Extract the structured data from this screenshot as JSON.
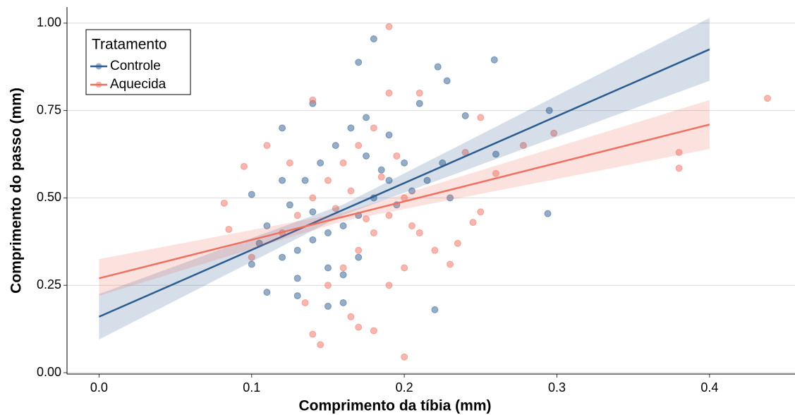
{
  "chart_data": {
    "type": "scatter",
    "x_label": "Comprimento da tíbia (mm)",
    "y_label": "Comprimento do passo (mm)",
    "legend_title": "Tratamento",
    "legend": "top-left",
    "grid": true,
    "xlim": [
      -0.021,
      0.456
    ],
    "ylim": [
      -0.004,
      1.046
    ],
    "xticks": [
      {
        "value": 0,
        "label": "0.0"
      },
      {
        "value": 0.1,
        "label": "0.1"
      },
      {
        "value": 0.2,
        "label": "0.2"
      },
      {
        "value": 0.3,
        "label": "0.3"
      },
      {
        "value": 0.4,
        "label": "0.4"
      }
    ],
    "yticks": [
      {
        "value": 0,
        "label": "0.00"
      },
      {
        "value": 0.25,
        "label": "0.25"
      },
      {
        "value": 0.5,
        "label": "0.50"
      },
      {
        "value": 0.75,
        "label": "0.75"
      },
      {
        "value": 1,
        "label": "1.00"
      }
    ],
    "series": [
      {
        "name": "Controle",
        "color": "#2b5c8f",
        "x": [
          0.259,
          0.295,
          0.294,
          0.26,
          0.22,
          0.18,
          0.17,
          0.222,
          0.228,
          0.1,
          0.12,
          0.14,
          0.1,
          0.11,
          0.13,
          0.15,
          0.16,
          0.24,
          0.23,
          0.21,
          0.2,
          0.19,
          0.18,
          0.17,
          0.16,
          0.15,
          0.14,
          0.13,
          0.12,
          0.11,
          0.125,
          0.135,
          0.145,
          0.155,
          0.165,
          0.175,
          0.185,
          0.195,
          0.205,
          0.215,
          0.225,
          0.15,
          0.16,
          0.17,
          0.14,
          0.13,
          0.175,
          0.19,
          0.12,
          0.105
        ],
        "values": [
          0.895,
          0.75,
          0.455,
          0.625,
          0.18,
          0.955,
          0.888,
          0.875,
          0.835,
          0.31,
          0.7,
          0.77,
          0.51,
          0.23,
          0.22,
          0.19,
          0.2,
          0.735,
          0.5,
          0.77,
          0.6,
          0.55,
          0.5,
          0.45,
          0.42,
          0.4,
          0.38,
          0.35,
          0.33,
          0.42,
          0.48,
          0.55,
          0.6,
          0.65,
          0.7,
          0.62,
          0.58,
          0.48,
          0.52,
          0.55,
          0.6,
          0.3,
          0.28,
          0.33,
          0.46,
          0.27,
          0.73,
          0.68,
          0.55,
          0.37
        ],
        "fit": {
          "x": [
            0,
            0.16,
            0.4
          ],
          "y": [
            0.16,
            0.466,
            0.925
          ],
          "lower": [
            0.095,
            0.451,
            0.835
          ],
          "upper": [
            0.225,
            0.481,
            1.015
          ]
        }
      },
      {
        "name": "Aquecida",
        "color": "#f07060",
        "x": [
          0.438,
          0.38,
          0.38,
          0.2,
          0.19,
          0.082,
          0.298,
          0.278,
          0.145,
          0.14,
          0.14,
          0.19,
          0.21,
          0.25,
          0.25,
          0.245,
          0.23,
          0.235,
          0.18,
          0.17,
          0.165,
          0.1,
          0.085,
          0.095,
          0.11,
          0.12,
          0.13,
          0.14,
          0.15,
          0.16,
          0.17,
          0.18,
          0.19,
          0.2,
          0.21,
          0.22,
          0.15,
          0.16,
          0.17,
          0.18,
          0.19,
          0.2,
          0.155,
          0.165,
          0.175,
          0.185,
          0.195,
          0.205,
          0.125,
          0.135,
          0.26,
          0.24
        ],
        "values": [
          0.785,
          0.63,
          0.585,
          0.045,
          0.99,
          0.485,
          0.685,
          0.65,
          0.08,
          0.11,
          0.78,
          0.8,
          0.8,
          0.73,
          0.46,
          0.43,
          0.31,
          0.37,
          0.12,
          0.13,
          0.16,
          0.33,
          0.41,
          0.59,
          0.65,
          0.4,
          0.45,
          0.5,
          0.55,
          0.6,
          0.65,
          0.7,
          0.45,
          0.5,
          0.4,
          0.35,
          0.25,
          0.3,
          0.35,
          0.4,
          0.25,
          0.3,
          0.47,
          0.52,
          0.44,
          0.56,
          0.62,
          0.42,
          0.6,
          0.2,
          0.57,
          0.63
        ],
        "fit": {
          "x": [
            0,
            0.16,
            0.4
          ],
          "y": [
            0.27,
            0.446,
            0.71
          ],
          "lower": [
            0.22,
            0.434,
            0.64
          ],
          "upper": [
            0.325,
            0.458,
            0.78
          ]
        }
      }
    ]
  }
}
